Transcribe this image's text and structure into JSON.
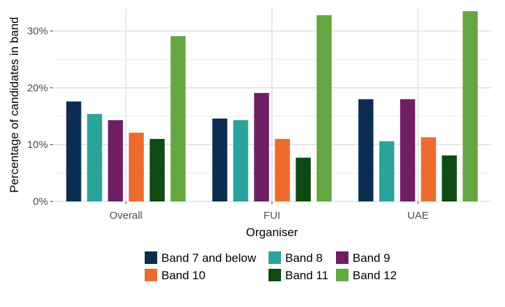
{
  "chart_data": {
    "type": "bar",
    "title": "",
    "xlabel": "Organiser",
    "ylabel": "Percentage of candidates in band",
    "ylim": [
      0,
      34
    ],
    "yticks": [
      0,
      10,
      20,
      30
    ],
    "ytick_labels": [
      "0%",
      "10%",
      "20%",
      "30%"
    ],
    "categories": [
      "Overall",
      "FUI",
      "UAE"
    ],
    "grid": true,
    "legend_position": "bottom",
    "series": [
      {
        "name": "Band 7 and below",
        "color": "#0c2d52",
        "values": [
          17.6,
          14.6,
          18.0
        ]
      },
      {
        "name": "Band 8",
        "color": "#2aa39a",
        "values": [
          15.4,
          14.3,
          10.6
        ]
      },
      {
        "name": "Band 9",
        "color": "#6e1f63",
        "values": [
          14.3,
          19.1,
          18.0
        ]
      },
      {
        "name": "Band 10",
        "color": "#ec6b2d",
        "values": [
          12.1,
          11.0,
          11.3
        ]
      },
      {
        "name": "Band 11",
        "color": "#0d4a14",
        "values": [
          11.0,
          7.7,
          8.1
        ]
      },
      {
        "name": "Band 12",
        "color": "#64a640",
        "values": [
          29.1,
          32.8,
          33.5
        ]
      }
    ]
  }
}
